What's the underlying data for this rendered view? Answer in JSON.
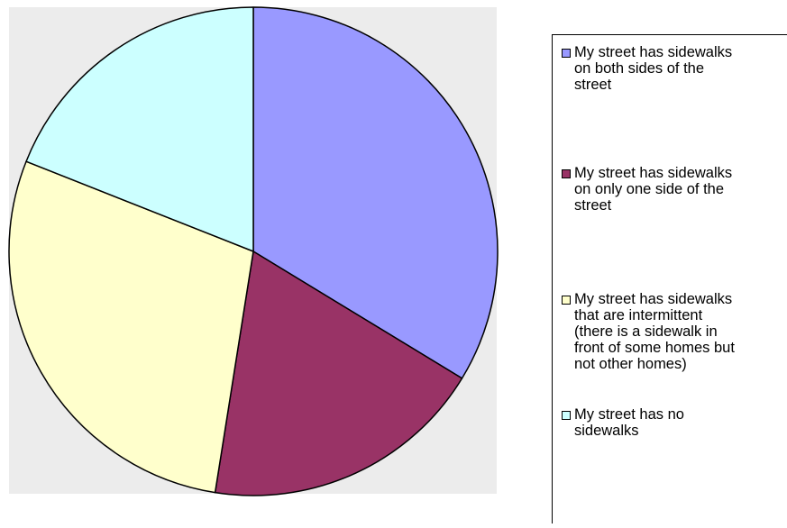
{
  "chart_data": {
    "type": "pie",
    "slices": [
      {
        "label": "My street has sidewalks\non both sides of the\nstreet",
        "value": 33.7,
        "color": "#9999ff"
      },
      {
        "label": "My street has sidewalks\non only one side of the\nstreet",
        "value": 18.8,
        "color": "#993366"
      },
      {
        "label": "My street has sidewalks\nthat are intermittent\n(there is a sidewalk in\nfront of some homes but\nnot other homes)",
        "value": 28.5,
        "color": "#ffffcc"
      },
      {
        "label": "My street has no\nsidewalks",
        "value": 19.0,
        "color": "#ccffff"
      }
    ],
    "legend": "right",
    "background": "#ececec"
  }
}
